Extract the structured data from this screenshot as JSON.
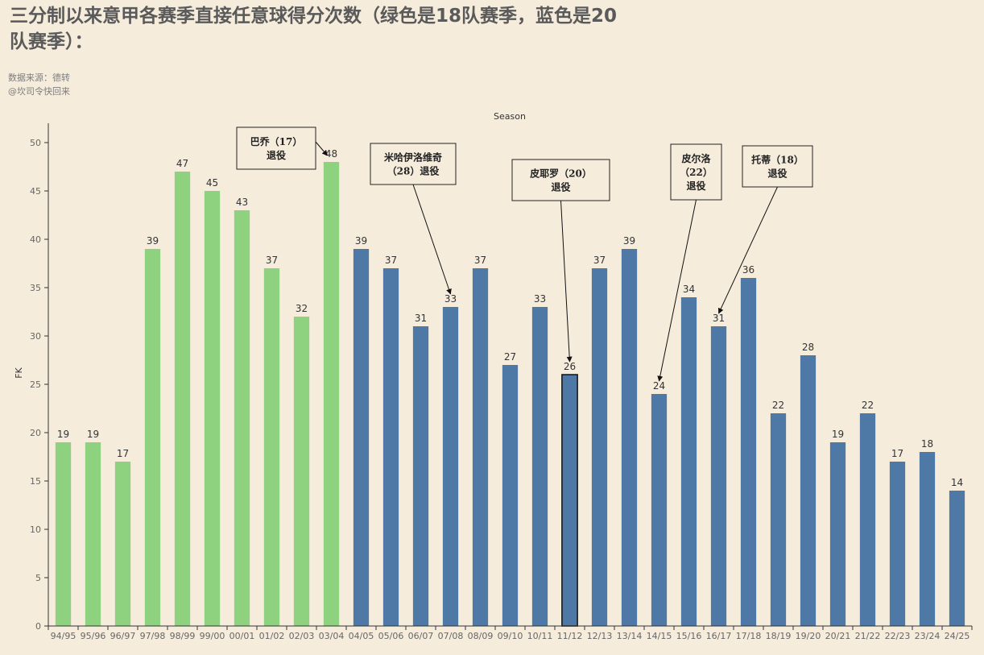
{
  "header": {
    "title": "三分制以来意甲各赛季直接任意球得分次数（绿色是18队赛季，蓝色是20队赛季）：",
    "source_line1": "数据来源：德转",
    "source_line2": "@坎司令快回来"
  },
  "colors": {
    "green": "#8ed17e",
    "blue": "#4e79a7",
    "background": "#f5ecdc"
  },
  "chart_data": {
    "type": "bar",
    "xlabel": "Season",
    "ylabel": "FK",
    "ylim": [
      0,
      52
    ],
    "yticks": [
      0,
      5,
      10,
      15,
      20,
      25,
      30,
      35,
      40,
      45,
      50
    ],
    "grid": false,
    "categories": [
      "94/95",
      "95/96",
      "96/97",
      "97/98",
      "98/99",
      "99/00",
      "00/01",
      "01/02",
      "02/03",
      "03/04",
      "04/05",
      "05/06",
      "06/07",
      "07/08",
      "08/09",
      "09/10",
      "10/11",
      "11/12",
      "12/13",
      "13/14",
      "14/15",
      "15/16",
      "16/17",
      "17/18",
      "18/19",
      "19/20",
      "20/21",
      "21/22",
      "22/23",
      "23/24",
      "24/25"
    ],
    "values": [
      19,
      19,
      17,
      39,
      47,
      45,
      43,
      37,
      32,
      48,
      39,
      37,
      31,
      33,
      37,
      27,
      33,
      26,
      37,
      39,
      24,
      34,
      31,
      36,
      22,
      28,
      19,
      22,
      17,
      18,
      14
    ],
    "bar_colors": [
      "green",
      "green",
      "green",
      "green",
      "green",
      "green",
      "green",
      "green",
      "green",
      "green",
      "blue",
      "blue",
      "blue",
      "blue",
      "blue",
      "blue",
      "blue",
      "blue",
      "blue",
      "blue",
      "blue",
      "blue",
      "blue",
      "blue",
      "blue",
      "blue",
      "blue",
      "blue",
      "blue",
      "blue",
      "blue"
    ],
    "highlight_index": 17,
    "annotations": [
      {
        "line1": "巴乔（17）",
        "line2": "退役",
        "target": "03/04"
      },
      {
        "line1": "米哈伊洛维奇",
        "line2": "（28）退役",
        "target": "07/08"
      },
      {
        "line1": "皮耶罗（20）",
        "line2": "退役",
        "target": "11/12"
      },
      {
        "line1": "皮尔洛",
        "line2": "（22）",
        "line3": "退役",
        "target": "14/15"
      },
      {
        "line1": "托蒂（18）",
        "line2": "退役",
        "target": "16/17"
      }
    ]
  }
}
